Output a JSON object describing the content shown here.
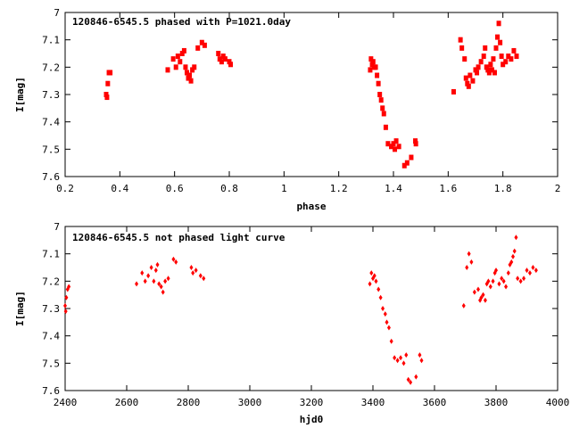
{
  "chart_data": [
    {
      "type": "scatter",
      "title": "120846-6545.5 phased with P=1021.0day",
      "xlabel": "phase",
      "ylabel": "I[mag]",
      "xlim": [
        0.2,
        2
      ],
      "ylim": [
        7,
        7.6
      ],
      "y_inverted": true,
      "grid": false,
      "legend": "none",
      "x_ticks": [
        0.2,
        0.4,
        0.6,
        0.8,
        1,
        1.2,
        1.4,
        1.6,
        1.8,
        2
      ],
      "x_tick_labels": [
        "0.2",
        "0.4",
        "0.6",
        "0.8",
        "1",
        "1.2",
        "1.4",
        "1.6",
        "1.8",
        "2"
      ],
      "y_ticks": [
        7,
        7.1,
        7.2,
        7.3,
        7.4,
        7.5,
        7.6
      ],
      "y_tick_labels": [
        "7",
        "7.1",
        "7.2",
        "7.3",
        "7.4",
        "7.5",
        "7.6"
      ],
      "marker_color": "#ff0000",
      "series": [
        {
          "x": [
            0.35,
            0.353,
            0.356,
            0.36,
            0.365,
            0.575,
            0.595,
            0.605,
            0.612,
            0.62,
            0.628,
            0.635,
            0.64,
            0.645,
            0.65,
            0.655,
            0.66,
            0.665,
            0.672,
            0.685,
            0.7,
            0.71,
            0.76,
            0.765,
            0.772,
            0.778,
            0.785,
            0.8,
            0.805,
            1.315,
            1.318,
            1.322,
            1.326,
            1.33,
            1.335,
            1.34,
            1.345,
            1.35,
            1.355,
            1.36,
            1.365,
            1.372,
            1.38,
            1.392,
            1.4,
            1.405,
            1.41,
            1.42,
            1.44,
            1.45,
            1.465,
            1.48,
            1.482,
            1.62,
            1.645,
            1.65,
            1.66,
            1.665,
            1.67,
            1.675,
            1.68,
            1.69,
            1.7,
            1.705,
            1.71,
            1.72,
            1.73,
            1.735,
            1.74,
            1.745,
            1.75,
            1.755,
            1.76,
            1.765,
            1.77,
            1.775,
            1.78,
            1.785,
            1.79,
            1.795,
            1.8,
            1.81,
            1.82,
            1.83,
            1.84,
            1.85
          ],
          "y": [
            7.3,
            7.31,
            7.26,
            7.22,
            7.22,
            7.21,
            7.17,
            7.2,
            7.16,
            7.18,
            7.15,
            7.14,
            7.2,
            7.22,
            7.24,
            7.23,
            7.25,
            7.21,
            7.2,
            7.13,
            7.11,
            7.12,
            7.15,
            7.17,
            7.18,
            7.16,
            7.17,
            7.18,
            7.19,
            7.21,
            7.17,
            7.19,
            7.18,
            7.2,
            7.2,
            7.23,
            7.26,
            7.3,
            7.32,
            7.35,
            7.37,
            7.42,
            7.48,
            7.49,
            7.48,
            7.5,
            7.47,
            7.49,
            7.56,
            7.55,
            7.53,
            7.47,
            7.48,
            7.29,
            7.1,
            7.13,
            7.17,
            7.24,
            7.26,
            7.27,
            7.23,
            7.25,
            7.21,
            7.22,
            7.2,
            7.18,
            7.16,
            7.13,
            7.2,
            7.21,
            7.22,
            7.19,
            7.21,
            7.17,
            7.22,
            7.13,
            7.09,
            7.04,
            7.11,
            7.16,
            7.19,
            7.18,
            7.16,
            7.17,
            7.14,
            7.16
          ]
        }
      ]
    },
    {
      "type": "scatter",
      "title": "120846-6545.5 not phased light curve",
      "xlabel": "hjd0",
      "ylabel": "I[mag]",
      "xlim": [
        2400,
        4000
      ],
      "ylim": [
        7,
        7.6
      ],
      "y_inverted": true,
      "grid": false,
      "legend": "none",
      "x_ticks": [
        2400,
        2600,
        2800,
        3000,
        3200,
        3400,
        3600,
        3800,
        4000
      ],
      "x_tick_labels": [
        "2400",
        "2600",
        "2800",
        "3000",
        "3200",
        "3400",
        "3600",
        "3800",
        "4000"
      ],
      "y_ticks": [
        7,
        7.1,
        7.2,
        7.3,
        7.4,
        7.5,
        7.6
      ],
      "y_tick_labels": [
        "7",
        "7.1",
        "7.2",
        "7.3",
        "7.4",
        "7.5",
        "7.6"
      ],
      "marker_color": "#ff0000",
      "series": [
        {
          "x": [
            2400,
            2402,
            2404,
            2408,
            2412,
            2632,
            2650,
            2660,
            2670,
            2680,
            2688,
            2695,
            2700,
            2705,
            2712,
            2718,
            2725,
            2735,
            2752,
            2760,
            2810,
            2815,
            2825,
            2840,
            2850,
            3390,
            3395,
            3400,
            3405,
            3410,
            3418,
            3425,
            3432,
            3440,
            3445,
            3452,
            3460,
            3470,
            3480,
            3490,
            3500,
            3508,
            3515,
            3522,
            3540,
            3552,
            3558,
            3695,
            3705,
            3712,
            3720,
            3730,
            3742,
            3748,
            3752,
            3758,
            3765,
            3770,
            3775,
            3782,
            3790,
            3796,
            3800,
            3810,
            3818,
            3825,
            3832,
            3840,
            3845,
            3850,
            3855,
            3860,
            3865,
            3870,
            3880,
            3890,
            3900,
            3910,
            3920,
            3930
          ],
          "y": [
            7.29,
            7.31,
            7.26,
            7.23,
            7.22,
            7.21,
            7.17,
            7.2,
            7.18,
            7.15,
            7.2,
            7.16,
            7.14,
            7.21,
            7.22,
            7.24,
            7.2,
            7.19,
            7.12,
            7.13,
            7.15,
            7.17,
            7.16,
            7.18,
            7.19,
            7.21,
            7.17,
            7.19,
            7.18,
            7.2,
            7.23,
            7.26,
            7.3,
            7.32,
            7.35,
            7.37,
            7.42,
            7.48,
            7.49,
            7.48,
            7.5,
            7.47,
            7.56,
            7.57,
            7.55,
            7.47,
            7.49,
            7.29,
            7.15,
            7.1,
            7.13,
            7.24,
            7.23,
            7.27,
            7.26,
            7.25,
            7.27,
            7.21,
            7.2,
            7.22,
            7.2,
            7.17,
            7.16,
            7.21,
            7.19,
            7.2,
            7.22,
            7.17,
            7.14,
            7.13,
            7.11,
            7.09,
            7.04,
            7.19,
            7.2,
            7.19,
            7.16,
            7.17,
            7.15,
            7.16
          ]
        }
      ]
    }
  ]
}
